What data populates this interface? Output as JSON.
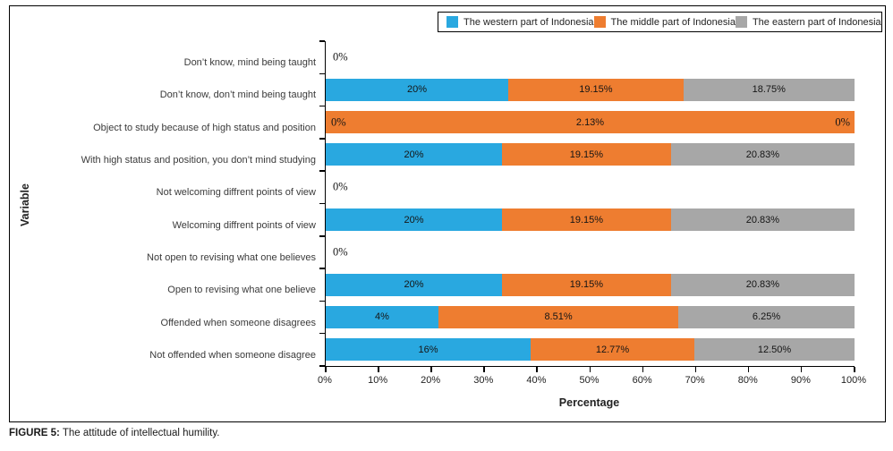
{
  "figure": {
    "caption_prefix": "FIGURE 5:",
    "caption_text": " The attitude of intellectual humility."
  },
  "chart_data": {
    "type": "bar",
    "orientation": "horizontal",
    "stacked": true,
    "normalized_to_100_percent": true,
    "title": "",
    "xlabel": "Percentage",
    "ylabel": "Variable",
    "xlim": [
      0,
      100
    ],
    "x_tick_labels": [
      "0%",
      "10%",
      "20%",
      "30%",
      "40%",
      "50%",
      "60%",
      "70%",
      "80%",
      "90%",
      "100%"
    ],
    "grid": false,
    "legend_position": "top-right-inside-border-box",
    "series": [
      {
        "name": "The western part of Indonesia",
        "color": "#29A8E0"
      },
      {
        "name": "The middle part of Indonesia",
        "color": "#EE7D30"
      },
      {
        "name": "The eastern part of Indonesia",
        "color": "#A7A7A7"
      }
    ],
    "rows": [
      {
        "category": "Don’t know, mind being taught",
        "values": [
          0,
          0,
          0
        ],
        "labels": [
          "0%"
        ]
      },
      {
        "category": "Don’t know, don’t mind being taught",
        "values": [
          20,
          19.15,
          18.75
        ],
        "labels": [
          "20%",
          "19.15%",
          "18.75%"
        ]
      },
      {
        "category": "Object to study because of high status and position",
        "values": [
          0,
          2.13,
          0
        ],
        "labels": [
          "0%",
          "2.13%",
          "0%"
        ]
      },
      {
        "category": "With high status and position, you don’t mind studying",
        "values": [
          20,
          19.15,
          20.83
        ],
        "labels": [
          "20%",
          "19.15%",
          "20.83%"
        ]
      },
      {
        "category": "Not welcoming diffrent points of view",
        "values": [
          0,
          0,
          0
        ],
        "labels": [
          "0%"
        ]
      },
      {
        "category": "Welcoming diffrent points of view",
        "values": [
          20,
          19.15,
          20.83
        ],
        "labels": [
          "20%",
          "19.15%",
          "20.83%"
        ]
      },
      {
        "category": "Not open to revising what one believes",
        "values": [
          0,
          0,
          0
        ],
        "labels": [
          "0%"
        ]
      },
      {
        "category": "Open to revising what one believe",
        "values": [
          20,
          19.15,
          20.83
        ],
        "labels": [
          "20%",
          "19.15%",
          "20.83%"
        ]
      },
      {
        "category": "Offended when someone disagrees",
        "values": [
          4,
          8.51,
          6.25
        ],
        "labels": [
          "4%",
          "8.51%",
          "6.25%"
        ]
      },
      {
        "category": "Not offended when someone disagree",
        "values": [
          16,
          12.77,
          12.5
        ],
        "labels": [
          "16%",
          "12.77%",
          "12.50%"
        ]
      }
    ]
  }
}
